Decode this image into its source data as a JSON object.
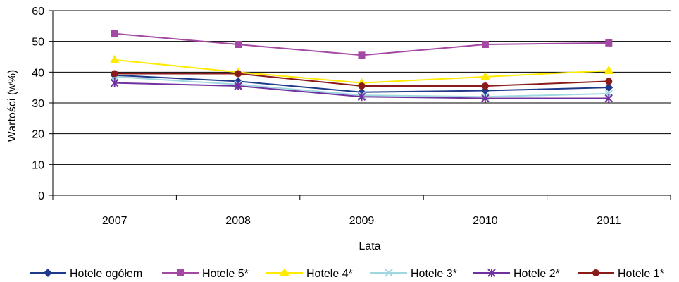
{
  "chart_data": {
    "type": "line",
    "title": "",
    "xlabel": "Lata",
    "ylabel": "Wartości (w%)",
    "ylim": [
      0,
      60
    ],
    "yticks": [
      0,
      10,
      20,
      30,
      40,
      50,
      60
    ],
    "grid": "horizontal",
    "legend": "bottom",
    "categories": [
      "2007",
      "2008",
      "2009",
      "2010",
      "2011"
    ],
    "series": [
      {
        "name": "Hotele ogółem",
        "color": "#1f3a8a",
        "marker": "diamond",
        "values": [
          39,
          37,
          33.5,
          34,
          35
        ]
      },
      {
        "name": "Hotele 5*",
        "color": "#a349a4",
        "marker": "square",
        "values": [
          52.5,
          49,
          45.5,
          49,
          49.5
        ]
      },
      {
        "name": "Hotele 4*",
        "color": "#ffea00",
        "marker": "triangle",
        "values": [
          44,
          40,
          36.5,
          38.5,
          40.5
        ]
      },
      {
        "name": "Hotele 3*",
        "color": "#9fd8e0",
        "marker": "x",
        "values": [
          38.5,
          36,
          32.5,
          32,
          33
        ]
      },
      {
        "name": "Hotele 2*",
        "color": "#7030a0",
        "marker": "star",
        "values": [
          36.5,
          35.5,
          32,
          31.5,
          31.5
        ]
      },
      {
        "name": "Hotele 1*",
        "color": "#8b1a1a",
        "marker": "circle",
        "values": [
          39.5,
          39.5,
          35.5,
          35.5,
          37
        ]
      }
    ]
  }
}
